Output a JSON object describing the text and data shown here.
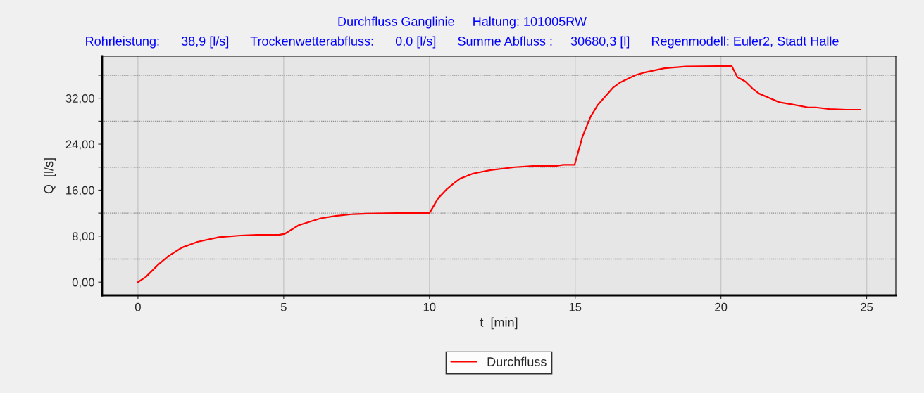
{
  "chart_data": {
    "type": "line",
    "title": "Durchfluss Ganglinie     Haltung: 101005RW",
    "subtitle": "Rohrleistung:      38,9 [l/s]      Trockenwetterabfluss:      0,0 [l/s]      Summe Abfluss :     30680,3 [l]      Regenmodell: Euler2, Stadt Halle",
    "xlabel": "t  [min]",
    "ylabel": "Q  [l/s]",
    "series": [
      {
        "name": "Durchfluss",
        "color": "#ff0000",
        "x": [
          0,
          0.27,
          0.71,
          1.04,
          1.51,
          2.04,
          2.78,
          3.52,
          4.08,
          4.83,
          5.04,
          5.52,
          6.27,
          6.78,
          7.33,
          7.84,
          8.86,
          10.0,
          10.3,
          10.6,
          10.84,
          11.05,
          11.5,
          12.1,
          12.93,
          13.54,
          14.33,
          14.59,
          14.98,
          15.25,
          15.53,
          15.77,
          16.29,
          16.53,
          17.06,
          17.32,
          18.06,
          18.79,
          20.0,
          20.37,
          20.56,
          20.84,
          21.08,
          21.31,
          21.63,
          22.0,
          22.46,
          22.99,
          23.25,
          23.73,
          24.3,
          24.78
        ],
        "values": [
          0,
          0.9,
          3.1,
          4.5,
          6.0,
          7.0,
          7.8,
          8.1,
          8.2,
          8.2,
          8.4,
          9.9,
          11.1,
          11.5,
          11.8,
          11.9,
          12.0,
          12.0,
          14.6,
          16.2,
          17.2,
          18.0,
          18.9,
          19.5,
          20.0,
          20.2,
          20.2,
          20.4,
          20.4,
          25.3,
          28.8,
          30.8,
          33.8,
          34.7,
          36.0,
          36.4,
          37.2,
          37.5,
          37.6,
          37.6,
          35.7,
          34.9,
          33.7,
          32.8,
          32.1,
          31.3,
          30.9,
          30.4,
          30.4,
          30.1,
          30.0,
          30.0
        ]
      }
    ],
    "xlim": [
      -1.23,
      26.0
    ],
    "ylim": [
      -2.3,
      39.3
    ],
    "xticks": [
      0,
      5,
      10,
      15,
      20,
      25
    ],
    "yticks": [
      {
        "value": 0,
        "label": "0,00"
      },
      {
        "value": 4,
        "label": null
      },
      {
        "value": 8,
        "label": "8,00"
      },
      {
        "value": 12,
        "label": null
      },
      {
        "value": 16,
        "label": "16,00"
      },
      {
        "value": 20,
        "label": null
      },
      {
        "value": 24,
        "label": "24,00"
      },
      {
        "value": 28,
        "label": null
      },
      {
        "value": 32,
        "label": "32,00"
      },
      {
        "value": 36,
        "label": null
      }
    ],
    "grid": true,
    "legend": "bottom",
    "marker": "none",
    "line_style": "solid"
  }
}
